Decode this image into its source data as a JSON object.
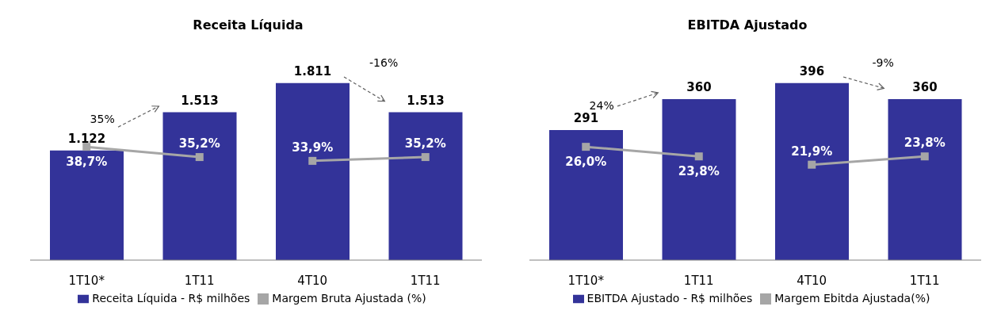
{
  "chart_data": [
    {
      "type": "bar",
      "title": "Receita Líquida",
      "categories": [
        "1T10*",
        "1T11",
        "4T10",
        "1T11"
      ],
      "legend": "bottom",
      "marker": "square",
      "annotations": [
        "35%",
        "-16%"
      ],
      "series": [
        {
          "name": "Receita Líquida - R$ milhões",
          "color": "#333399",
          "values": [
            1122,
            1513,
            1811,
            1513
          ],
          "value_labels": [
            "1.122",
            "1.513",
            "1.811",
            "1.513"
          ]
        },
        {
          "name": "Margem Bruta Ajustada (%)",
          "type": "line",
          "axis": "y2",
          "color": "#a6a6a6",
          "values": [
            38.7,
            35.2,
            null,
            null
          ],
          "value_labels": [
            "38,7%",
            "35,2%",
            null,
            null
          ]
        },
        {
          "type": "line",
          "axis": "y2",
          "color": "#a6a6a6",
          "values": [
            null,
            null,
            33.9,
            35.2
          ],
          "value_labels": [
            null,
            null,
            "33,9%",
            "35,2%"
          ]
        }
      ]
    },
    {
      "type": "bar",
      "title": "EBITDA Ajustado",
      "categories": [
        "1T10*",
        "1T11",
        "4T10",
        "1T11"
      ],
      "legend": "bottom",
      "marker": "square",
      "annotations": [
        "24%",
        "-9%"
      ],
      "series": [
        {
          "name": "EBITDA Ajustado - R$ milhões",
          "color": "#333399",
          "values": [
            291,
            360,
            396,
            360
          ],
          "value_labels": [
            "291",
            "360",
            "396",
            "360"
          ]
        },
        {
          "name": "Margem Ebitda Ajustada(%)",
          "type": "line",
          "axis": "y2",
          "color": "#a6a6a6",
          "values": [
            26.0,
            23.8,
            null,
            null
          ],
          "value_labels": [
            "26,0%",
            "23,8%",
            null,
            null
          ]
        },
        {
          "type": "line",
          "axis": "y2",
          "color": "#a6a6a6",
          "values": [
            null,
            null,
            21.9,
            23.8
          ],
          "value_labels": [
            null,
            null,
            "21,9%",
            "23,8%"
          ]
        }
      ]
    }
  ]
}
